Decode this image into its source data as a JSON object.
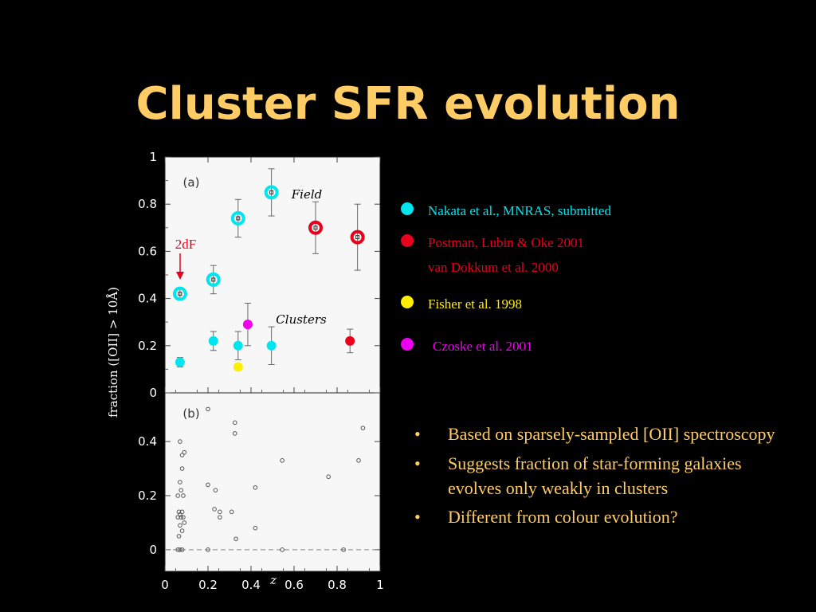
{
  "title": "Cluster SFR evolution",
  "colors": {
    "title": "#ffcc66",
    "cyan": "#00e5ee",
    "red": "#e8001c",
    "yellow": "#ffee00",
    "magenta": "#ee00ee",
    "plot_bg": "#f7f7f7"
  },
  "legend": [
    {
      "label": "Nakata et al., MNRAS, submitted",
      "color": "#00e5ee",
      "text_color": "#00e5ee"
    },
    {
      "label": "Postman, Lubin & Oke 2001",
      "label2": "van Dokkum et al. 2000",
      "color": "#e8001c",
      "text_color": "#e8001c"
    },
    {
      "label": "Fisher et al. 1998",
      "color": "#ffee00",
      "text_color": "#ffee00"
    },
    {
      "label": "Czoske et al. 2001",
      "color": "#ee00ee",
      "text_color": "#ee00ee"
    }
  ],
  "bullets": [
    "Based on sparsely-sampled [OII] spectroscopy",
    "Suggests fraction of star-forming galaxies evolves only weakly in clusters",
    "Different from colour evolution?"
  ],
  "chart_data": [
    {
      "type": "scatter",
      "panel_label": "(a)",
      "ylabel": "fraction  ([OII] > 10Å)",
      "xlim": [
        0,
        1
      ],
      "ylim": [
        0,
        1
      ],
      "yticks": [
        0,
        0.2,
        0.4,
        0.6,
        0.8,
        1
      ],
      "annotations": {
        "field": "Field",
        "clusters": "Clusters",
        "twodf": "2dF"
      },
      "series": [
        {
          "id": "field_cyan",
          "color": "#00e5ee",
          "style": "ring",
          "points": [
            {
              "x": 0.07,
              "y": 0.42,
              "err": 0.02
            },
            {
              "x": 0.225,
              "y": 0.48,
              "err": 0.06
            },
            {
              "x": 0.34,
              "y": 0.74,
              "err": 0.08
            },
            {
              "x": 0.495,
              "y": 0.85,
              "err": 0.1
            }
          ]
        },
        {
          "id": "field_red",
          "color": "#e8001c",
          "style": "ring",
          "points": [
            {
              "x": 0.7,
              "y": 0.7,
              "err": 0.11
            },
            {
              "x": 0.895,
              "y": 0.66,
              "err": 0.14
            }
          ]
        },
        {
          "id": "cluster_cyan",
          "color": "#00e5ee",
          "style": "dot",
          "points": [
            {
              "x": 0.07,
              "y": 0.13,
              "err": 0.02
            },
            {
              "x": 0.225,
              "y": 0.22,
              "err": 0.04
            },
            {
              "x": 0.34,
              "y": 0.2,
              "err": 0.06
            },
            {
              "x": 0.495,
              "y": 0.2,
              "err": 0.08
            }
          ]
        },
        {
          "id": "cluster_yellow",
          "color": "#ffee00",
          "style": "dot",
          "points": [
            {
              "x": 0.34,
              "y": 0.11,
              "err": 0.0
            }
          ]
        },
        {
          "id": "cluster_magenta",
          "color": "#ee00ee",
          "style": "dot",
          "points": [
            {
              "x": 0.385,
              "y": 0.29,
              "err": 0.09
            }
          ]
        },
        {
          "id": "cluster_red",
          "color": "#e8001c",
          "style": "dot",
          "points": [
            {
              "x": 0.86,
              "y": 0.22,
              "err": 0.05
            }
          ]
        }
      ]
    },
    {
      "type": "scatter",
      "panel_label": "(b)",
      "xlabel": "z",
      "xlim": [
        0,
        1
      ],
      "ylim": [
        -0.08,
        0.58
      ],
      "xticks": [
        0,
        0.2,
        0.4,
        0.6,
        0.8,
        1
      ],
      "yticks": [
        0,
        0.2,
        0.4
      ],
      "reference_line_y": 0,
      "points": [
        {
          "x": 0.06,
          "y": 0.0
        },
        {
          "x": 0.07,
          "y": 0.0
        },
        {
          "x": 0.08,
          "y": 0.0
        },
        {
          "x": 0.2,
          "y": 0.0
        },
        {
          "x": 0.545,
          "y": 0.0
        },
        {
          "x": 0.83,
          "y": 0.0
        },
        {
          "x": 0.06,
          "y": 0.12
        },
        {
          "x": 0.065,
          "y": 0.14
        },
        {
          "x": 0.07,
          "y": 0.13
        },
        {
          "x": 0.075,
          "y": 0.12
        },
        {
          "x": 0.08,
          "y": 0.14
        },
        {
          "x": 0.085,
          "y": 0.12
        },
        {
          "x": 0.06,
          "y": 0.2
        },
        {
          "x": 0.07,
          "y": 0.25
        },
        {
          "x": 0.075,
          "y": 0.22
        },
        {
          "x": 0.08,
          "y": 0.3
        },
        {
          "x": 0.085,
          "y": 0.2
        },
        {
          "x": 0.09,
          "y": 0.36
        },
        {
          "x": 0.07,
          "y": 0.4
        },
        {
          "x": 0.08,
          "y": 0.35
        },
        {
          "x": 0.07,
          "y": 0.09
        },
        {
          "x": 0.08,
          "y": 0.07
        },
        {
          "x": 0.09,
          "y": 0.1
        },
        {
          "x": 0.065,
          "y": 0.05
        },
        {
          "x": 0.2,
          "y": 0.52
        },
        {
          "x": 0.2,
          "y": 0.24
        },
        {
          "x": 0.235,
          "y": 0.22
        },
        {
          "x": 0.23,
          "y": 0.15
        },
        {
          "x": 0.255,
          "y": 0.14
        },
        {
          "x": 0.255,
          "y": 0.12
        },
        {
          "x": 0.31,
          "y": 0.14
        },
        {
          "x": 0.325,
          "y": 0.43
        },
        {
          "x": 0.325,
          "y": 0.47
        },
        {
          "x": 0.33,
          "y": 0.04
        },
        {
          "x": 0.42,
          "y": 0.23
        },
        {
          "x": 0.42,
          "y": 0.08
        },
        {
          "x": 0.545,
          "y": 0.33
        },
        {
          "x": 0.76,
          "y": 0.27
        },
        {
          "x": 0.9,
          "y": 0.33
        },
        {
          "x": 0.92,
          "y": 0.45
        }
      ]
    }
  ]
}
